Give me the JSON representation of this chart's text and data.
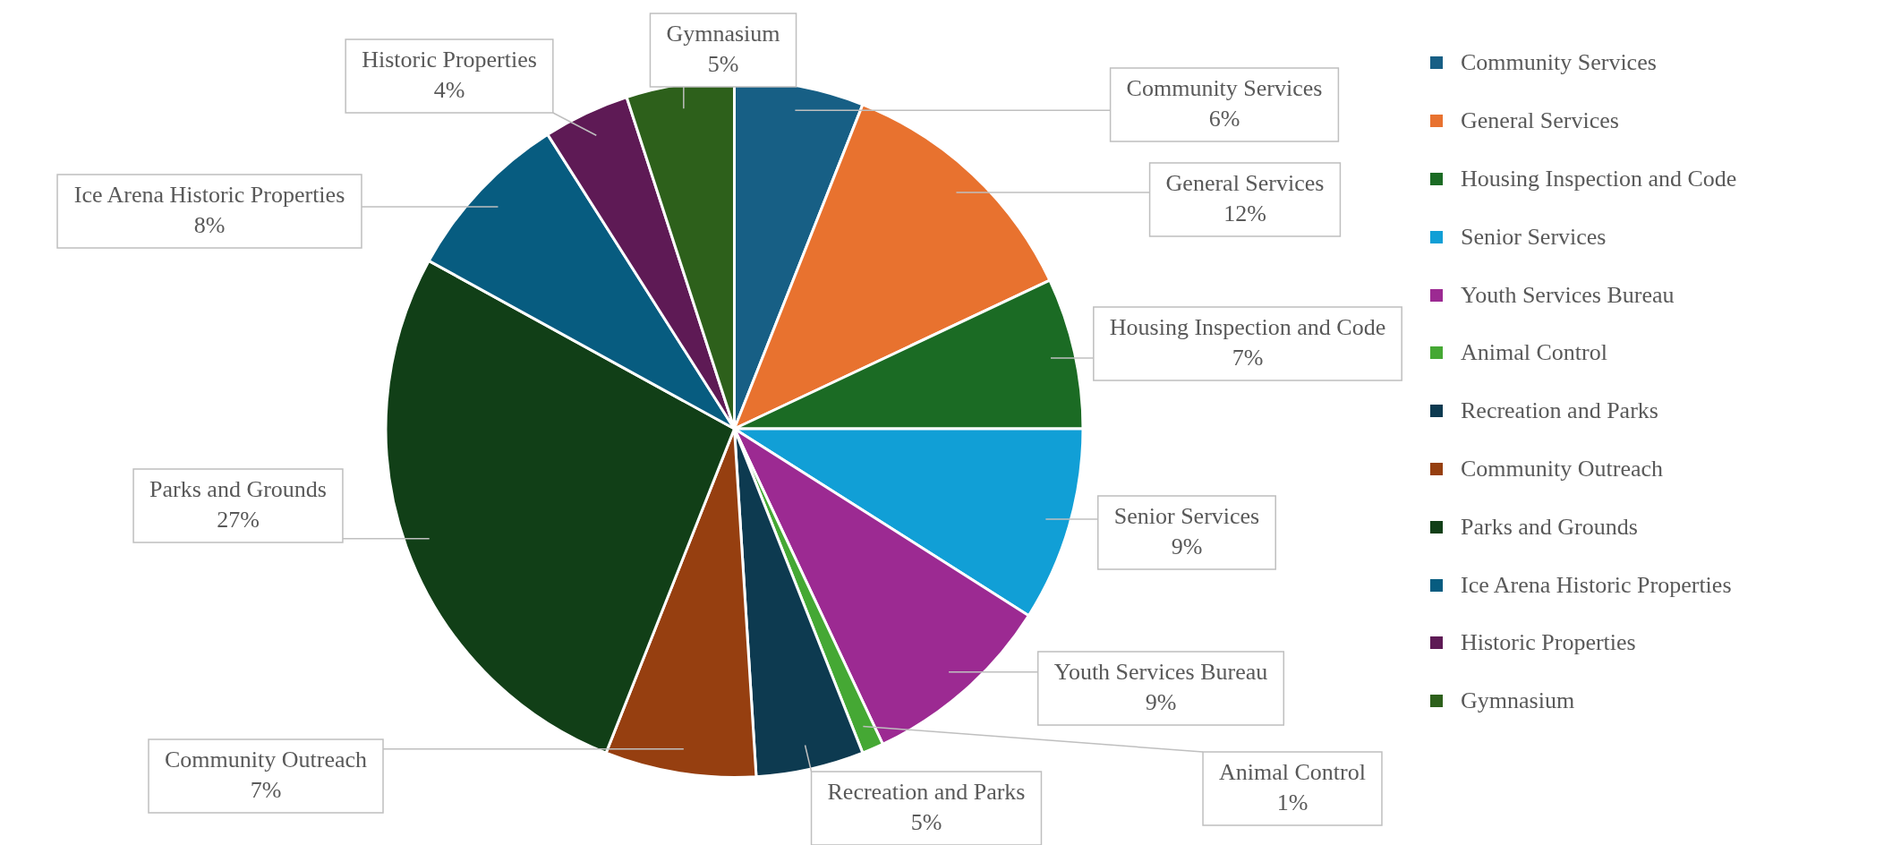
{
  "chart_data": {
    "type": "pie",
    "categories": [
      "Community Services",
      "General Services",
      "Housing Inspection and Code",
      "Senior Services",
      "Youth Services Bureau",
      "Animal Control",
      "Recreation and Parks",
      "Community Outreach",
      "Parks and Grounds",
      "Ice Arena Historic Properties",
      "Historic Properties",
      "Gymnasium"
    ],
    "values": [
      6,
      12,
      7,
      9,
      9,
      1,
      5,
      7,
      27,
      8,
      4,
      5
    ],
    "value_labels": [
      "6%",
      "12%",
      "7%",
      "9%",
      "9%",
      "1%",
      "5%",
      "7%",
      "27%",
      "8%",
      "4%",
      "5%"
    ],
    "colors": [
      "#175f85",
      "#e8722f",
      "#1b6b24",
      "#119fd6",
      "#9c2a92",
      "#45a834",
      "#0d3a50",
      "#963f10",
      "#113f17",
      "#075c80",
      "#5e1a55",
      "#2d601b"
    ],
    "legend": "right"
  }
}
